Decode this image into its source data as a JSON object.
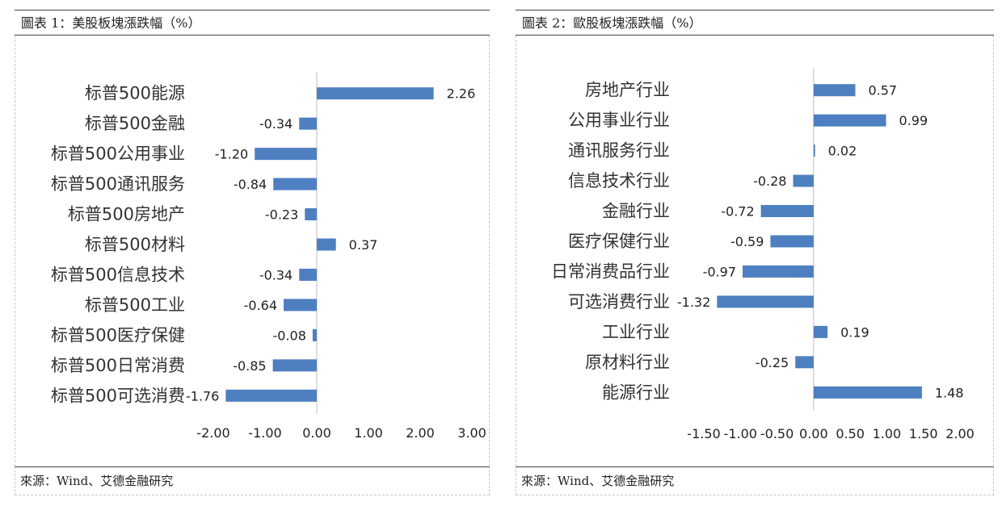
{
  "left": {
    "title": "圖表 1：美股板塊漲跌幅（%）",
    "source": "來源：Wind、艾德金融研究",
    "chart_data": {
      "type": "bar",
      "orientation": "horizontal",
      "categories": [
        "标普500能源",
        "标普500金融",
        "标普500公用事业",
        "标普500通讯服务",
        "标普500房地产",
        "标普500材料",
        "标普500信息技术",
        "标普500工业",
        "标普500医疗保健",
        "标普500日常消费",
        "标普500可选消费"
      ],
      "values": [
        2.26,
        -0.34,
        -1.2,
        -0.84,
        -0.23,
        0.37,
        -0.34,
        -0.64,
        -0.08,
        -0.85,
        -1.76
      ],
      "value_labels": [
        "2.26",
        "-0.34",
        "-1.20",
        "-0.84",
        "-0.23",
        "0.37",
        "-0.34",
        "-0.64",
        "-0.08",
        "-0.85",
        "-1.76"
      ],
      "xlim": [
        -2,
        3
      ],
      "ticks": [
        -2,
        -1,
        0,
        1,
        2,
        3
      ],
      "tick_labels": [
        "-2.00",
        "-1.00",
        "0.00",
        "1.00",
        "2.00",
        "3.00"
      ],
      "bar_color": "#4e7fc0",
      "grid": false
    }
  },
  "right": {
    "title": "圖表 2：歐股板塊漲跌幅（%）",
    "source": "來源：Wind、艾德金融研究",
    "chart_data": {
      "type": "bar",
      "orientation": "horizontal",
      "categories": [
        "房地产行业",
        "公用事业行业",
        "通讯服务行业",
        "信息技术行业",
        "金融行业",
        "医疗保健行业",
        "日常消费品行业",
        "可选消费行业",
        "工业行业",
        "原材料行业",
        "能源行业"
      ],
      "values": [
        0.57,
        0.99,
        0.02,
        -0.28,
        -0.72,
        -0.59,
        -0.97,
        -1.32,
        0.19,
        -0.25,
        1.48
      ],
      "value_labels": [
        "0.57",
        "0.99",
        "0.02",
        "-0.28",
        "-0.72",
        "-0.59",
        "-0.97",
        "-1.32",
        "0.19",
        "-0.25",
        "1.48"
      ],
      "xlim": [
        -1.5,
        2
      ],
      "ticks": [
        -1.5,
        -1,
        -0.5,
        0,
        0.5,
        1,
        1.5,
        2
      ],
      "tick_labels": [
        "-1.50",
        "-1.00",
        "-0.50",
        "0.00",
        "0.50",
        "1.00",
        "1.50",
        "2.00"
      ],
      "bar_color": "#4e7fc0",
      "grid": false
    }
  }
}
